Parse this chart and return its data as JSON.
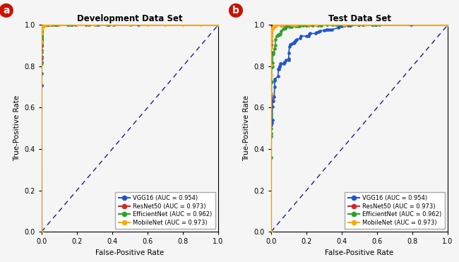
{
  "panel_a_title": "Development Data Set",
  "panel_b_title": "Test Data Set",
  "xlabel": "False-Positive Rate",
  "ylabel": "True-Positive Rate",
  "legend_labels": [
    "VGG16 (AUC = 0.954)",
    "ResNet50 (AUC = 0.973)",
    "EfficientNet (AUC = 0.962)",
    "MobileNet (AUC = 0.973)"
  ],
  "colors": [
    "#2255cc",
    "#d62728",
    "#2ca02c",
    "#ffaa00"
  ],
  "diagonal_color": "#1a1a8c",
  "background_color": "#f5f5f5",
  "panel_label_bg": "#cc1100",
  "panel_label_color": "#ffffff",
  "xlim": [
    0,
    1
  ],
  "ylim": [
    0,
    1
  ],
  "xticks": [
    0,
    0.2,
    0.4,
    0.6,
    0.8,
    1
  ],
  "yticks": [
    0,
    0.2,
    0.4,
    0.6,
    0.8,
    1
  ]
}
